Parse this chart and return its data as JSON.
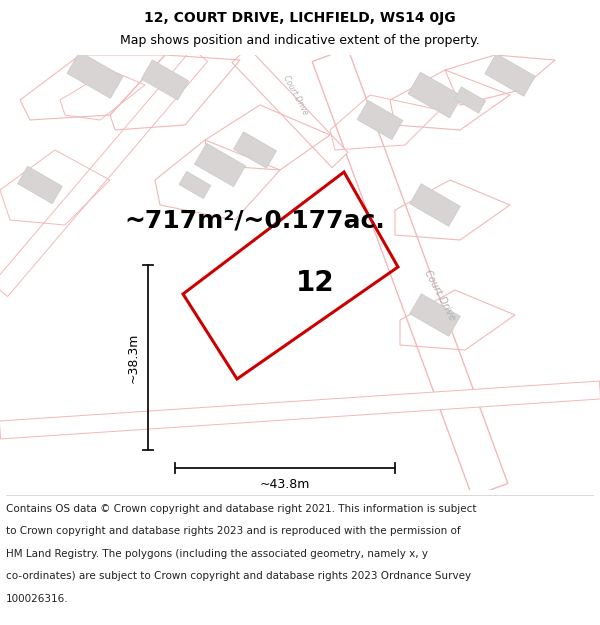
{
  "title_line1": "12, COURT DRIVE, LICHFIELD, WS14 0JG",
  "title_line2": "Map shows position and indicative extent of the property.",
  "area_text": "~717m²/~0.177ac.",
  "label_number": "12",
  "dim_width": "~43.8m",
  "dim_height": "~38.3m",
  "footer_lines": [
    "Contains OS data © Crown copyright and database right 2021. This information is subject",
    "to Crown copyright and database rights 2023 and is reproduced with the permission of",
    "HM Land Registry. The polygons (including the associated geometry, namely x, y",
    "co-ordinates) are subject to Crown copyright and database rights 2023 Ordnance Survey",
    "100026316."
  ],
  "bg_color": "#ffffff",
  "map_bg_color": "#faf8f8",
  "road_color": "#f2b8b8",
  "plot_color": "#f2b8b8",
  "building_fill": "#d8d4d4",
  "building_edge": "#cccccc",
  "property_color": "#cc0000",
  "dim_color": "#111111",
  "road_label_color": "#b0b0b0",
  "title_fontsize": 10,
  "subtitle_fontsize": 9,
  "area_fontsize": 18,
  "number_fontsize": 20,
  "footer_fontsize": 7.5,
  "dim_fontsize": 9
}
